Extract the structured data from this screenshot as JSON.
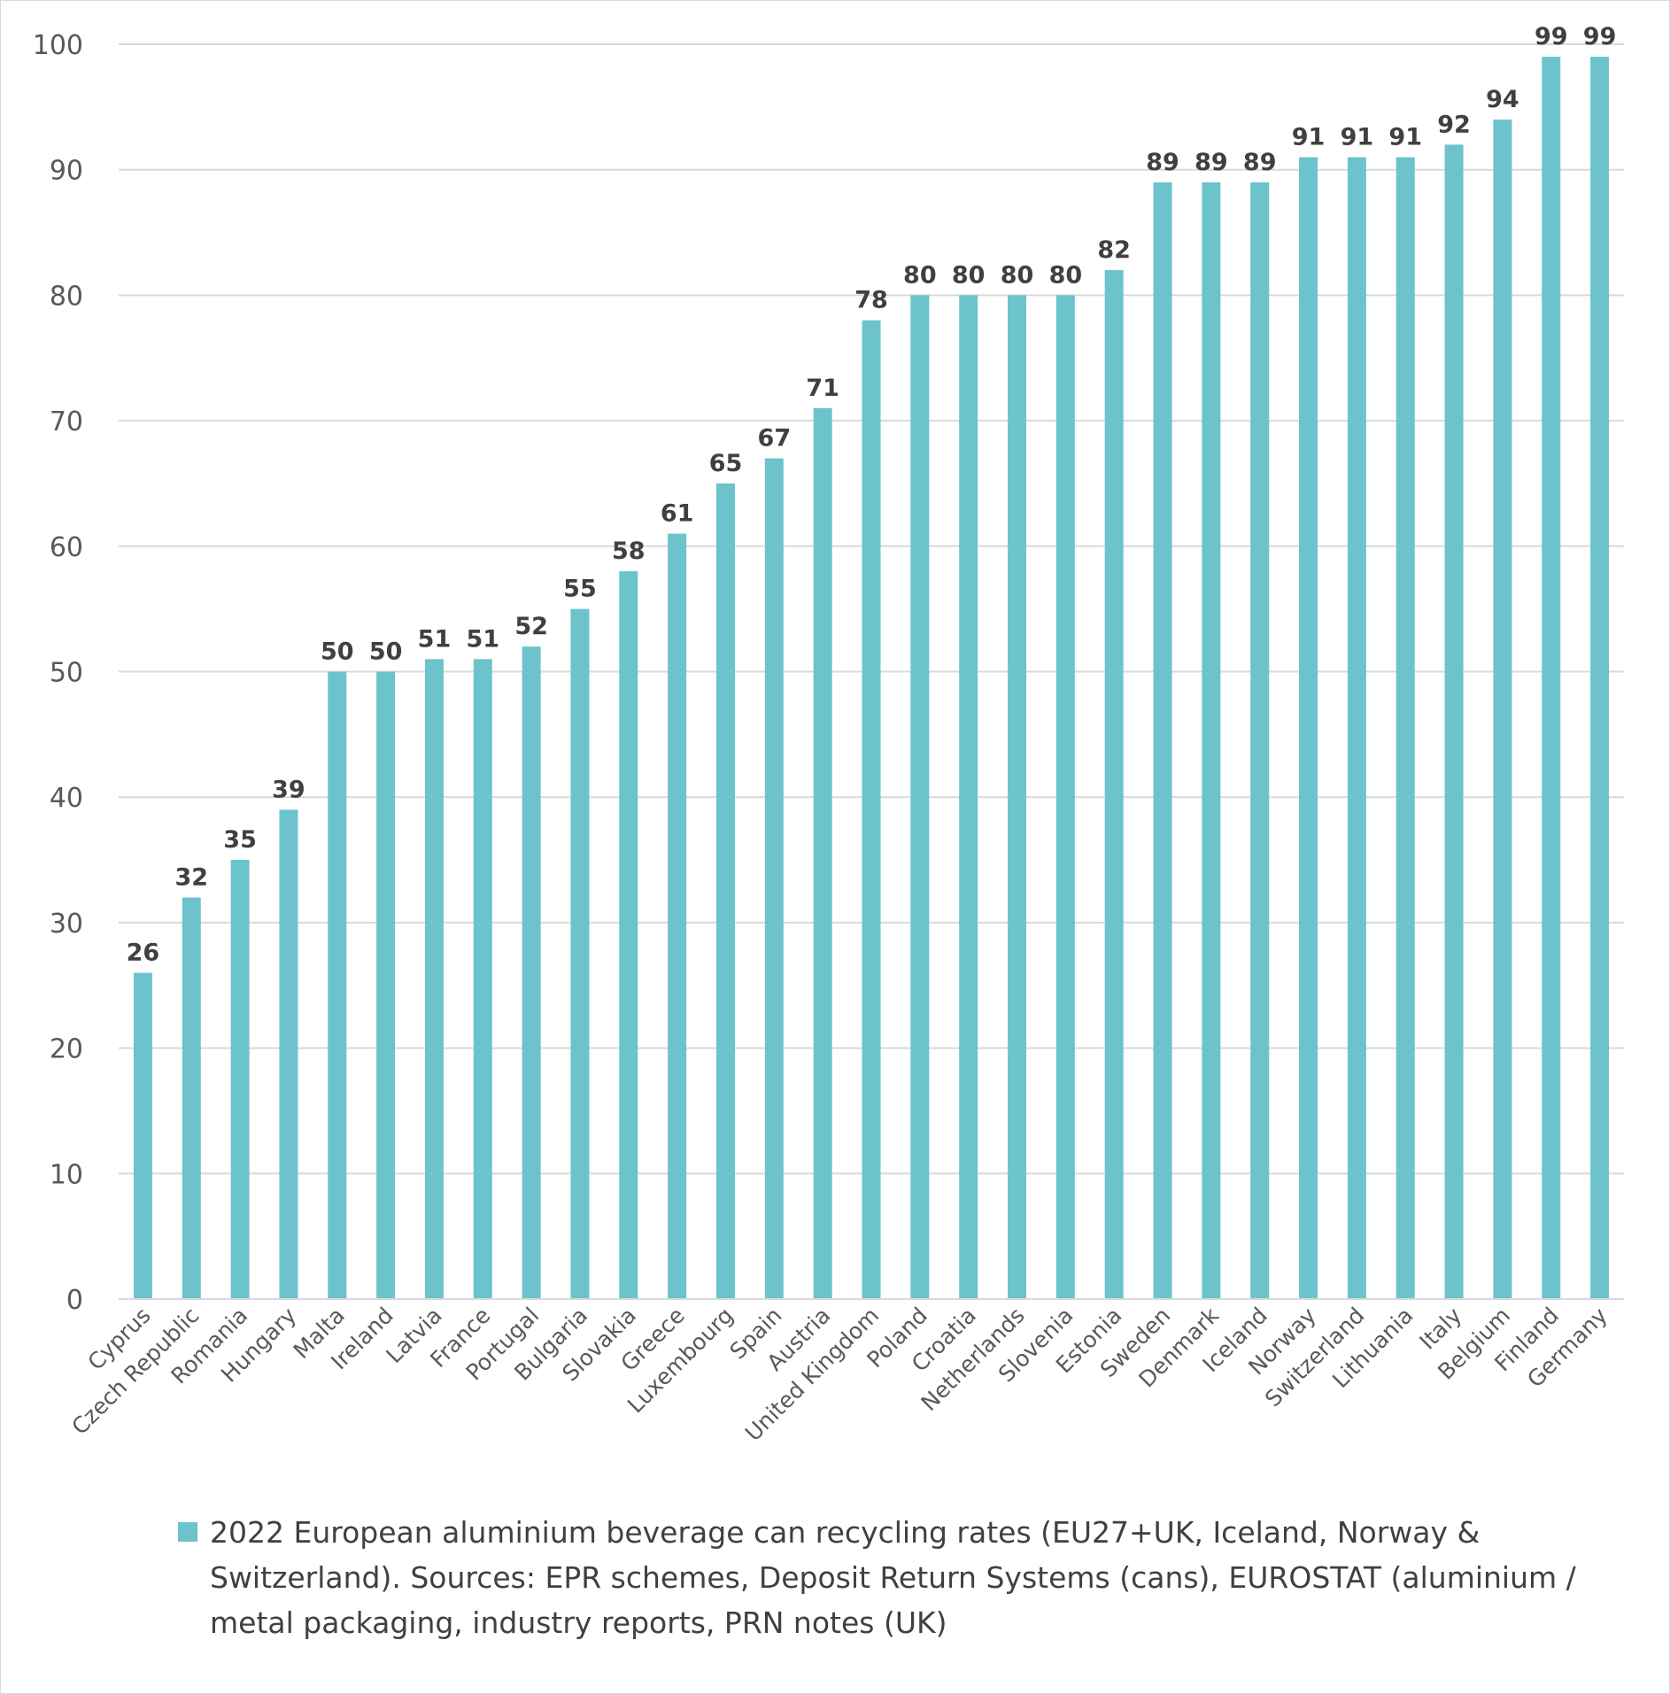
{
  "chart_data": {
    "type": "bar",
    "title": "",
    "xlabel": "",
    "ylabel": "",
    "ylim": [
      0,
      100
    ],
    "yticks": [
      0,
      10,
      20,
      30,
      40,
      50,
      60,
      70,
      80,
      90,
      100
    ],
    "grid": "horizontal",
    "bar_color": "#6cc3cc",
    "data_labels": true,
    "legend_position": "bottom",
    "categories": [
      "Cyprus",
      "Czech Republic",
      "Romania",
      "Hungary",
      "Malta",
      "Ireland",
      "Latvia",
      "France",
      "Portugal",
      "Bulgaria",
      "Slovakia",
      "Greece",
      "Luxembourg",
      "Spain",
      "Austria",
      "United Kingdom",
      "Poland",
      "Croatia",
      "Netherlands",
      "Slovenia",
      "Estonia",
      "Sweden",
      "Denmark",
      "Iceland",
      "Norway",
      "Switzerland",
      "Lithuania",
      "Italy",
      "Belgium",
      "Finland",
      "Germany"
    ],
    "series": [
      {
        "name": "2022 European aluminium beverage can recycling rates (EU27+UK, Iceland, Norway & Switzerland). Sources: EPR schemes, Deposit Return Systems (cans), EUROSTAT (aluminium / metal packaging, industry reports, PRN notes (UK)",
        "values": [
          26,
          32,
          35,
          39,
          50,
          50,
          51,
          51,
          52,
          55,
          58,
          61,
          65,
          67,
          71,
          78,
          80,
          80,
          80,
          80,
          82,
          89,
          89,
          89,
          91,
          91,
          91,
          92,
          94,
          99,
          99
        ]
      }
    ]
  }
}
